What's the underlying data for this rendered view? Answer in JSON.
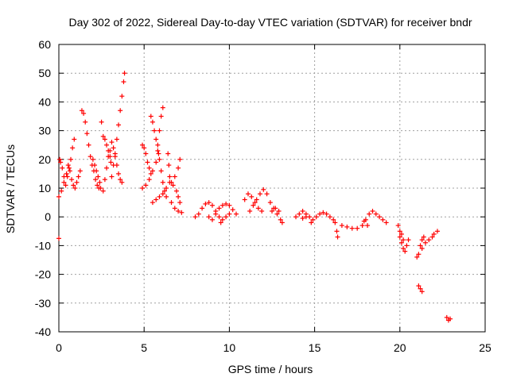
{
  "chart_data": {
    "type": "scatter",
    "title": "Day 302 of 2022, Sidereal Day-to-day VTEC variation (SDTVAR) for receiver bndr",
    "xlabel": "GPS time / hours",
    "ylabel": "SDTVAR / TECUs",
    "xlim": [
      0,
      25
    ],
    "ylim": [
      -40,
      60
    ],
    "x_ticks": [
      0,
      5,
      10,
      15,
      20,
      25
    ],
    "y_ticks": [
      -40,
      -30,
      -20,
      -10,
      0,
      10,
      20,
      30,
      40,
      50,
      60
    ],
    "grid": true,
    "marker": "+",
    "marker_color": "#ff0000",
    "series": [
      {
        "name": "SDTVAR",
        "points": [
          [
            0.0,
            -7.5
          ],
          [
            0.0,
            7
          ],
          [
            0.05,
            20
          ],
          [
            0.1,
            19
          ],
          [
            0.2,
            17
          ],
          [
            0.3,
            14
          ],
          [
            0.4,
            11
          ],
          [
            0.5,
            14
          ],
          [
            0.6,
            17
          ],
          [
            0.7,
            20
          ],
          [
            0.8,
            24
          ],
          [
            0.9,
            27
          ],
          [
            0.15,
            9
          ],
          [
            0.3,
            12
          ],
          [
            0.45,
            15
          ],
          [
            0.55,
            18
          ],
          [
            0.65,
            16
          ],
          [
            0.75,
            13
          ],
          [
            0.85,
            11
          ],
          [
            0.95,
            10
          ],
          [
            1.05,
            12
          ],
          [
            1.15,
            14
          ],
          [
            1.25,
            16
          ],
          [
            1.35,
            37
          ],
          [
            1.45,
            36
          ],
          [
            1.55,
            33
          ],
          [
            1.65,
            29
          ],
          [
            1.75,
            25
          ],
          [
            1.85,
            21
          ],
          [
            1.95,
            18
          ],
          [
            2.05,
            16
          ],
          [
            2.15,
            13
          ],
          [
            2.25,
            11
          ],
          [
            2.35,
            10
          ],
          [
            2.0,
            20
          ],
          [
            2.1,
            18
          ],
          [
            2.2,
            16
          ],
          [
            2.3,
            14
          ],
          [
            2.4,
            12
          ],
          [
            2.45,
            10
          ],
          [
            2.5,
            33
          ],
          [
            2.6,
            9
          ],
          [
            2.7,
            13
          ],
          [
            2.8,
            17
          ],
          [
            2.9,
            21
          ],
          [
            3.0,
            23
          ],
          [
            3.1,
            26
          ],
          [
            3.2,
            24
          ],
          [
            3.3,
            21
          ],
          [
            3.4,
            18
          ],
          [
            3.5,
            15
          ],
          [
            3.6,
            13
          ],
          [
            3.7,
            12
          ],
          [
            2.6,
            28
          ],
          [
            2.7,
            27
          ],
          [
            2.8,
            25
          ],
          [
            2.9,
            23
          ],
          [
            3.0,
            21
          ],
          [
            3.05,
            19
          ],
          [
            3.1,
            14
          ],
          [
            3.2,
            18
          ],
          [
            3.3,
            22
          ],
          [
            3.4,
            27
          ],
          [
            3.5,
            32
          ],
          [
            3.6,
            37
          ],
          [
            3.7,
            42
          ],
          [
            3.8,
            47
          ],
          [
            3.85,
            50
          ],
          [
            4.9,
            25
          ],
          [
            5.0,
            24
          ],
          [
            5.1,
            22
          ],
          [
            5.2,
            19
          ],
          [
            5.3,
            17
          ],
          [
            5.4,
            15
          ],
          [
            4.9,
            10
          ],
          [
            5.1,
            11
          ],
          [
            5.3,
            13
          ],
          [
            5.5,
            16
          ],
          [
            5.7,
            19
          ],
          [
            5.85,
            22
          ],
          [
            5.4,
            35
          ],
          [
            5.5,
            33
          ],
          [
            5.6,
            30
          ],
          [
            5.7,
            27
          ],
          [
            5.8,
            23
          ],
          [
            5.9,
            20
          ],
          [
            6.0,
            16
          ],
          [
            6.1,
            12
          ],
          [
            6.2,
            9
          ],
          [
            6.3,
            7
          ],
          [
            5.5,
            5
          ],
          [
            5.7,
            6
          ],
          [
            5.9,
            7
          ],
          [
            6.1,
            8
          ],
          [
            6.3,
            10
          ],
          [
            6.5,
            12
          ],
          [
            6.7,
            11
          ],
          [
            6.9,
            9
          ],
          [
            7.0,
            7
          ],
          [
            7.1,
            5
          ],
          [
            5.8,
            25
          ],
          [
            5.9,
            30
          ],
          [
            6.0,
            35
          ],
          [
            6.1,
            38
          ],
          [
            6.4,
            22
          ],
          [
            6.45,
            18
          ],
          [
            6.5,
            14
          ],
          [
            6.6,
            12
          ],
          [
            6.8,
            14
          ],
          [
            7.0,
            17
          ],
          [
            7.1,
            20
          ],
          [
            6.6,
            5
          ],
          [
            6.8,
            3
          ],
          [
            7.0,
            2
          ],
          [
            7.2,
            1.5
          ],
          [
            8.0,
            0
          ],
          [
            8.2,
            1
          ],
          [
            8.4,
            3
          ],
          [
            8.6,
            4.5
          ],
          [
            8.8,
            5
          ],
          [
            9.0,
            4
          ],
          [
            9.2,
            2
          ],
          [
            9.4,
            0
          ],
          [
            9.5,
            -2
          ],
          [
            8.8,
            0
          ],
          [
            9.0,
            -1
          ],
          [
            9.2,
            1
          ],
          [
            9.4,
            3
          ],
          [
            9.6,
            4
          ],
          [
            9.8,
            4.5
          ],
          [
            10.0,
            4
          ],
          [
            10.2,
            2.5
          ],
          [
            10.4,
            1
          ],
          [
            9.6,
            -1
          ],
          [
            9.8,
            0
          ],
          [
            10.0,
            1
          ],
          [
            10.9,
            6
          ],
          [
            11.1,
            8
          ],
          [
            11.3,
            7
          ],
          [
            11.5,
            5
          ],
          [
            11.7,
            3
          ],
          [
            11.9,
            2
          ],
          [
            11.2,
            2
          ],
          [
            11.4,
            4
          ],
          [
            11.6,
            6
          ],
          [
            11.8,
            8
          ],
          [
            12.0,
            9.5
          ],
          [
            12.2,
            8
          ],
          [
            12.4,
            5
          ],
          [
            12.6,
            3
          ],
          [
            12.8,
            1
          ],
          [
            13.0,
            -1
          ],
          [
            13.1,
            -2
          ],
          [
            12.5,
            2
          ],
          [
            12.7,
            3
          ],
          [
            12.9,
            2
          ],
          [
            13.9,
            0
          ],
          [
            14.1,
            1
          ],
          [
            14.3,
            2
          ],
          [
            14.5,
            1
          ],
          [
            14.7,
            0
          ],
          [
            14.9,
            -1
          ],
          [
            15.1,
            0
          ],
          [
            15.3,
            1
          ],
          [
            15.5,
            1.5
          ],
          [
            15.7,
            1
          ],
          [
            15.9,
            0
          ],
          [
            16.1,
            -1
          ],
          [
            16.2,
            -2
          ],
          [
            14.3,
            -0.5
          ],
          [
            14.5,
            0
          ],
          [
            14.8,
            -2
          ],
          [
            16.3,
            -5
          ],
          [
            16.35,
            -7
          ],
          [
            16.6,
            -3
          ],
          [
            16.9,
            -3.5
          ],
          [
            17.2,
            -4
          ],
          [
            17.5,
            -4
          ],
          [
            17.8,
            -3
          ],
          [
            18.0,
            -1
          ],
          [
            18.2,
            1
          ],
          [
            18.4,
            2
          ],
          [
            18.6,
            1
          ],
          [
            18.8,
            0
          ],
          [
            19.0,
            -1
          ],
          [
            19.2,
            -2
          ],
          [
            17.9,
            -1.5
          ],
          [
            18.1,
            -3
          ],
          [
            19.9,
            -3
          ],
          [
            20.0,
            -5
          ],
          [
            20.1,
            -6
          ],
          [
            20.2,
            -8
          ],
          [
            20.0,
            -7
          ],
          [
            20.1,
            -9
          ],
          [
            20.2,
            -11
          ],
          [
            20.3,
            -12
          ],
          [
            20.4,
            -10
          ],
          [
            20.5,
            -8
          ],
          [
            21.0,
            -14
          ],
          [
            21.1,
            -13
          ],
          [
            21.3,
            -11
          ],
          [
            21.5,
            -9
          ],
          [
            21.7,
            -8
          ],
          [
            21.9,
            -7
          ],
          [
            22.0,
            -6
          ],
          [
            22.2,
            -5
          ],
          [
            21.2,
            -10
          ],
          [
            21.3,
            -8
          ],
          [
            21.4,
            -7
          ],
          [
            21.1,
            -24
          ],
          [
            21.2,
            -25
          ],
          [
            21.3,
            -26
          ],
          [
            22.75,
            -35
          ],
          [
            22.85,
            -36
          ],
          [
            22.95,
            -35.5
          ]
        ]
      }
    ]
  }
}
